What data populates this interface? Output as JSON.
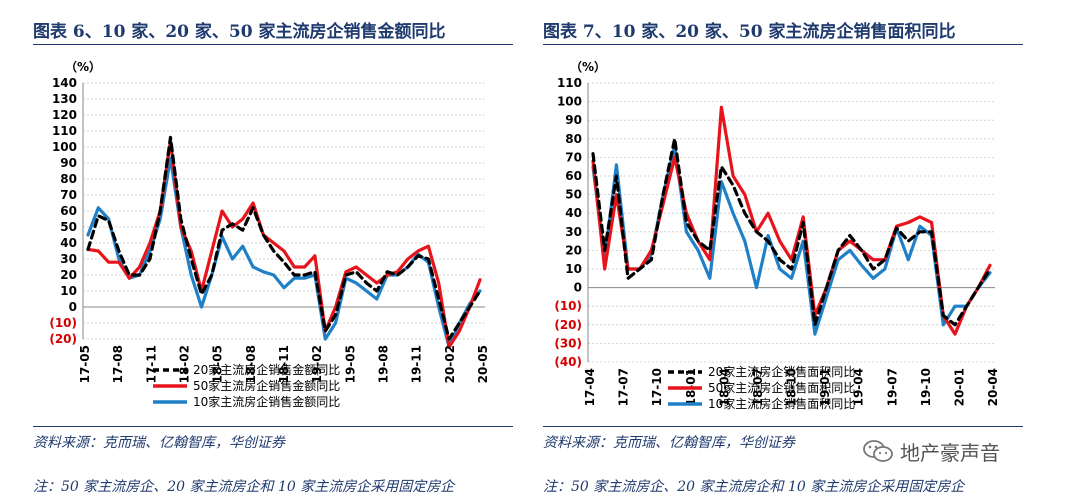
{
  "left": {
    "title": "图表 6、10 家、20 家、50 家主流房企销售金额同比",
    "source": "资料来源：克而瑞、亿翰智库，华创证券",
    "note": "注：50 家主流房企、20 家主流房企和 10 家主流房企采用固定房企"
  },
  "right": {
    "title": "图表 7、10 家、20 家、50 家主流房企销售面积同比",
    "source": "资料来源：克而瑞、亿翰智库，华创证券",
    "note": "注：50 家主流房企、20 家主流房企和 10 家主流房企采用固定房企"
  },
  "watermark": {
    "text": "地产豪声音",
    "icon": "wechat-icon"
  },
  "chart_data": [
    {
      "type": "line",
      "unit_label": "（%）",
      "ylim": [
        -20,
        140
      ],
      "yticks": [
        -20,
        -10,
        0,
        10,
        20,
        30,
        40,
        50,
        60,
        70,
        80,
        90,
        100,
        110,
        120,
        130,
        140
      ],
      "ytick_labels": [
        "(20)",
        "(10)",
        "0",
        "10",
        "20",
        "30",
        "40",
        "50",
        "60",
        "70",
        "80",
        "90",
        "100",
        "110",
        "120",
        "130",
        "140"
      ],
      "x_labels": [
        "17-05",
        "17-08",
        "17-11",
        "18-02",
        "18-05",
        "18-08",
        "18-11",
        "19-02",
        "19-05",
        "19-08",
        "19-11",
        "20-02",
        "20-05"
      ],
      "grid": true,
      "legend": "bottom",
      "series": [
        {
          "name": "20家主流房企销售金额同比",
          "color": "#000000",
          "dash": true,
          "values": [
            36,
            57,
            54,
            35,
            20,
            20,
            30,
            60,
            106,
            55,
            30,
            8,
            20,
            48,
            52,
            48,
            62,
            45,
            35,
            28,
            20,
            20,
            22,
            -15,
            -5,
            20,
            22,
            15,
            10,
            22,
            20,
            25,
            32,
            30,
            5,
            -20,
            -10,
            0,
            10
          ]
        },
        {
          "name": "50家主流房企销售金额同比",
          "color": "#e8141b",
          "dash": false,
          "values": [
            36,
            35,
            28,
            28,
            18,
            25,
            40,
            60,
            104,
            50,
            35,
            10,
            35,
            60,
            50,
            55,
            65,
            45,
            40,
            35,
            25,
            25,
            32,
            -15,
            0,
            22,
            25,
            20,
            15,
            20,
            22,
            30,
            35,
            38,
            15,
            -25,
            -15,
            0,
            17
          ]
        },
        {
          "name": "10家主流房企销售金额同比",
          "color": "#1f80c8",
          "dash": false,
          "values": [
            45,
            62,
            55,
            30,
            18,
            20,
            35,
            55,
            93,
            50,
            20,
            0,
            20,
            44,
            30,
            38,
            25,
            22,
            20,
            12,
            18,
            18,
            20,
            -20,
            -10,
            18,
            15,
            10,
            5,
            20,
            20,
            25,
            33,
            28,
            0,
            -25,
            -10,
            2,
            10
          ]
        }
      ]
    },
    {
      "type": "line",
      "unit_label": "（%）",
      "ylim": [
        -40,
        110
      ],
      "yticks": [
        -40,
        -30,
        -20,
        -10,
        0,
        10,
        20,
        30,
        40,
        50,
        60,
        70,
        80,
        90,
        100,
        110
      ],
      "ytick_labels": [
        "(40)",
        "(30)",
        "(20)",
        "(10)",
        "0",
        "10",
        "20",
        "30",
        "40",
        "50",
        "60",
        "70",
        "80",
        "90",
        "100",
        "110"
      ],
      "x_labels": [
        "17-04",
        "17-07",
        "17-10",
        "18-01",
        "18-04",
        "18-07",
        "18-10",
        "19-01",
        "19-04",
        "19-07",
        "19-10",
        "20-01",
        "20-04"
      ],
      "grid": true,
      "legend": "bottom",
      "series": [
        {
          "name": "20家主流房企销售面积同比",
          "color": "#000000",
          "dash": true,
          "values": [
            72,
            20,
            60,
            5,
            10,
            15,
            50,
            80,
            35,
            25,
            20,
            65,
            55,
            40,
            30,
            25,
            15,
            10,
            35,
            -20,
            0,
            20,
            28,
            20,
            10,
            15,
            32,
            25,
            30,
            30,
            -15,
            -20,
            -10,
            0,
            10
          ]
        },
        {
          "name": "50家主流房企销售面积同比",
          "color": "#e8141b",
          "dash": false,
          "values": [
            68,
            10,
            50,
            10,
            10,
            20,
            45,
            70,
            40,
            25,
            15,
            97,
            60,
            50,
            30,
            40,
            25,
            15,
            38,
            -15,
            0,
            20,
            25,
            20,
            15,
            15,
            33,
            35,
            38,
            35,
            -15,
            -25,
            -10,
            0,
            12
          ]
        },
        {
          "name": "10家主流房企销售面积同比",
          "color": "#1f80c8",
          "dash": false,
          "values": [
            65,
            15,
            66,
            10,
            10,
            18,
            50,
            76,
            30,
            20,
            5,
            57,
            40,
            25,
            0,
            28,
            10,
            5,
            25,
            -25,
            -5,
            15,
            20,
            12,
            5,
            10,
            32,
            15,
            33,
            28,
            -20,
            -10,
            -10,
            0,
            8
          ]
        }
      ]
    }
  ]
}
